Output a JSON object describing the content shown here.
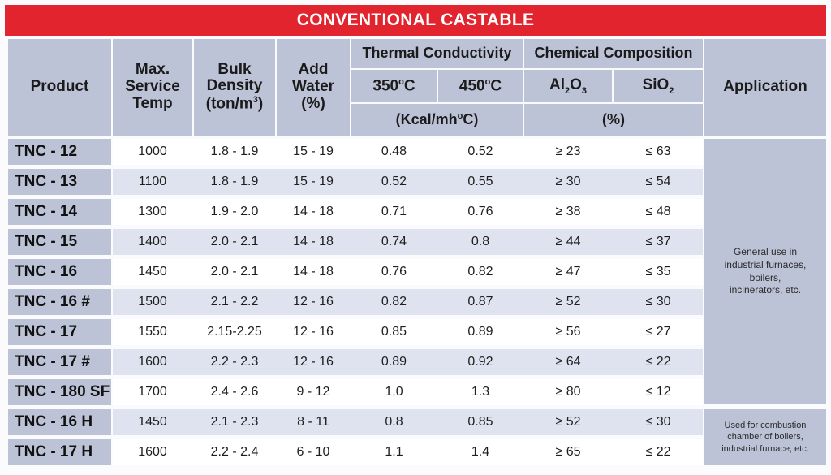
{
  "title": "CONVENTIONAL CASTABLE",
  "headers": {
    "product": "Product",
    "max_temp": [
      "Max.",
      "Service",
      "Temp"
    ],
    "bulk_density": [
      "Bulk",
      "Density"
    ],
    "bulk_density_unit_prefix": "(ton/m",
    "bulk_density_unit_sup": "3",
    "bulk_density_unit_suffix": ")",
    "add_water": [
      "Add",
      "Water",
      "(%)"
    ],
    "thermal_conductivity": "Thermal Conductivity",
    "temp_350_num": "350",
    "temp_350_sup": "o",
    "temp_350_unit": "C",
    "temp_450_num": "450",
    "temp_450_sup": "o",
    "temp_450_unit": "C",
    "tc_unit_prefix": "(Kcal/mh",
    "tc_unit_sup": "o",
    "tc_unit_suffix": "C)",
    "chemical_composition": "Chemical Composition",
    "al2o3_a": "Al",
    "al2o3_sub1": "2",
    "al2o3_b": "O",
    "al2o3_sub2": "3",
    "sio2_a": "SiO",
    "sio2_sub": "2",
    "cc_unit": "(%)",
    "application": "Application"
  },
  "rows": [
    {
      "product": "TNC - 12",
      "max_temp": "1000",
      "bulk_density": "1.8 - 1.9",
      "add_water": "15 - 19",
      "tc_350": "0.48",
      "tc_450": "0.52",
      "al2o3": "≥ 23",
      "sio2": "≤ 63"
    },
    {
      "product": "TNC - 13",
      "max_temp": "1100",
      "bulk_density": "1.8 - 1.9",
      "add_water": "15 - 19",
      "tc_350": "0.52",
      "tc_450": "0.55",
      "al2o3": "≥ 30",
      "sio2": "≤ 54"
    },
    {
      "product": "TNC - 14",
      "max_temp": "1300",
      "bulk_density": "1.9 - 2.0",
      "add_water": "14 - 18",
      "tc_350": "0.71",
      "tc_450": "0.76",
      "al2o3": "≥ 38",
      "sio2": "≤ 48"
    },
    {
      "product": "TNC - 15",
      "max_temp": "1400",
      "bulk_density": "2.0 - 2.1",
      "add_water": "14 - 18",
      "tc_350": "0.74",
      "tc_450": "0.8",
      "al2o3": "≥ 44",
      "sio2": "≤ 37"
    },
    {
      "product": "TNC - 16",
      "max_temp": "1450",
      "bulk_density": "2.0 - 2.1",
      "add_water": "14 - 18",
      "tc_350": "0.76",
      "tc_450": "0.82",
      "al2o3": "≥ 47",
      "sio2": "≤ 35"
    },
    {
      "product": "TNC - 16 #",
      "max_temp": "1500",
      "bulk_density": "2.1 - 2.2",
      "add_water": "12 - 16",
      "tc_350": "0.82",
      "tc_450": "0.87",
      "al2o3": "≥ 52",
      "sio2": "≤ 30"
    },
    {
      "product": "TNC - 17",
      "max_temp": "1550",
      "bulk_density": "2.15-2.25",
      "add_water": "12 - 16",
      "tc_350": "0.85",
      "tc_450": "0.89",
      "al2o3": "≥ 56",
      "sio2": "≤ 27"
    },
    {
      "product": "TNC - 17 #",
      "max_temp": "1600",
      "bulk_density": "2.2 - 2.3",
      "add_water": "12 - 16",
      "tc_350": "0.89",
      "tc_450": "0.92",
      "al2o3": "≥ 64",
      "sio2": "≤ 22"
    },
    {
      "product": "TNC - 180 SF",
      "max_temp": "1700",
      "bulk_density": "2.4 - 2.6",
      "add_water": "9 - 12",
      "tc_350": "1.0",
      "tc_450": "1.3",
      "al2o3": "≥ 80",
      "sio2": "≤ 12"
    },
    {
      "product": "TNC - 16 H",
      "max_temp": "1450",
      "bulk_density": "2.1 - 2.3",
      "add_water": "8 - 11",
      "tc_350": "0.8",
      "tc_450": "0.85",
      "al2o3": "≥ 52",
      "sio2": "≤ 30"
    },
    {
      "product": "TNC - 17 H",
      "max_temp": "1600",
      "bulk_density": "2.2 - 2.4",
      "add_water": "6 - 10",
      "tc_350": "1.1",
      "tc_450": "1.4",
      "al2o3": "≥ 65",
      "sio2": "≤ 22"
    }
  ],
  "applications": {
    "general": [
      "General use in",
      "industrial furnaces,",
      "boilers,",
      "incinerators, etc."
    ],
    "combustion": [
      "Used for combustion",
      "chamber of boilers,",
      "industrial furnace, etc."
    ]
  }
}
